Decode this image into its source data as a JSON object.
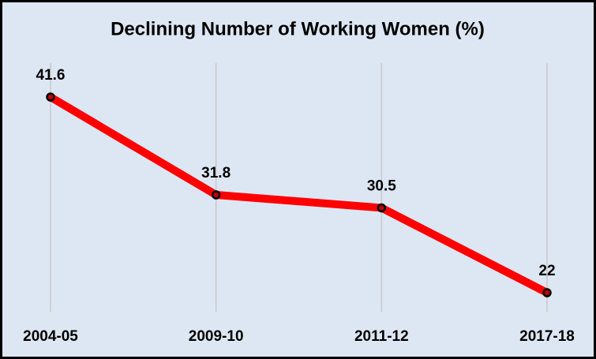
{
  "chart_data": {
    "type": "line",
    "title": "Declining Number of Working Women (%)",
    "categories": [
      "2004-05",
      "2009-10",
      "2011-12",
      "2017-18"
    ],
    "values": [
      41.6,
      31.8,
      30.5,
      22
    ],
    "color": "#ff0000",
    "marker_color": "#000000",
    "grid": true
  }
}
